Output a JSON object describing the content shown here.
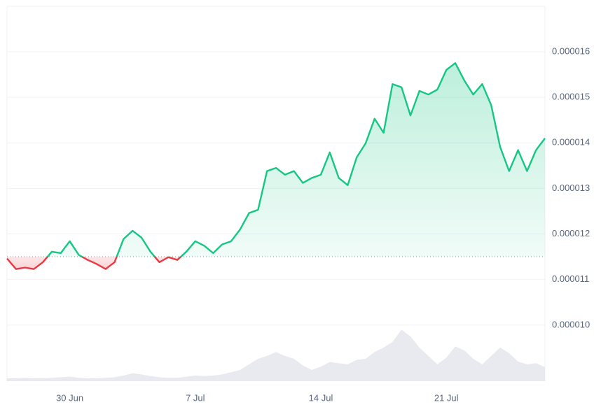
{
  "chart_data": {
    "type": "line",
    "categories": [
      null,
      null,
      null,
      null,
      null,
      null,
      null,
      "30 Jun",
      null,
      null,
      null,
      null,
      null,
      null,
      null,
      null,
      null,
      null,
      null,
      null,
      null,
      "7 Jul",
      null,
      null,
      null,
      null,
      null,
      null,
      null,
      null,
      null,
      null,
      null,
      null,
      null,
      "14 Jul",
      null,
      null,
      null,
      null,
      null,
      null,
      null,
      null,
      null,
      null,
      null,
      null,
      null,
      "21 Jul",
      null,
      null,
      null,
      null,
      null,
      null,
      null,
      null,
      null,
      null,
      null
    ],
    "series": [
      {
        "color": "#16c784",
        "values": [
          1.146e-05,
          1.123e-05,
          1.126e-05,
          1.123e-05,
          1.138e-05,
          1.161e-05,
          1.158e-05,
          1.184e-05,
          1.154e-05,
          1.143e-05,
          1.134e-05,
          1.123e-05,
          1.138e-05,
          1.189e-05,
          1.207e-05,
          1.192e-05,
          1.161e-05,
          1.138e-05,
          1.149e-05,
          1.143e-05,
          1.161e-05,
          1.184e-05,
          1.174e-05,
          1.158e-05,
          1.177e-05,
          1.184e-05,
          1.21e-05,
          1.246e-05,
          1.253e-05,
          1.338e-05,
          1.345e-05,
          1.33e-05,
          1.338e-05,
          1.312e-05,
          1.323e-05,
          1.33e-05,
          1.379e-05,
          1.323e-05,
          1.307e-05,
          1.368e-05,
          1.399e-05,
          1.453e-05,
          1.422e-05,
          1.529e-05,
          1.522e-05,
          1.46e-05,
          1.514e-05,
          1.506e-05,
          1.517e-05,
          1.56e-05,
          1.575e-05,
          1.537e-05,
          1.506e-05,
          1.529e-05,
          1.483e-05,
          1.391e-05,
          1.338e-05,
          1.384e-05,
          1.338e-05,
          1.384e-05,
          1.41e-05
        ]
      },
      {
        "color": "#e0e3eb",
        "axis": "y2",
        "values": [
          5,
          5,
          6,
          5,
          5,
          6,
          7,
          8,
          6,
          5,
          5,
          6,
          7,
          10,
          14,
          12,
          9,
          7,
          6,
          6,
          8,
          10,
          9,
          10,
          12,
          16,
          20,
          30,
          40,
          45,
          52,
          45,
          40,
          28,
          20,
          26,
          34,
          32,
          30,
          38,
          40,
          52,
          60,
          70,
          92,
          80,
          60,
          45,
          30,
          42,
          62,
          55,
          40,
          30,
          45,
          60,
          50,
          35,
          30,
          32,
          25
        ]
      }
    ],
    "baseline": 1.15e-05,
    "below_color": "#ea3943",
    "ylim": [
      8.8e-06,
      1.7e-05
    ],
    "yticks": [
      {
        "value": 1e-05,
        "label": "0.000010"
      },
      1.1e-05,
      1.2e-05,
      1.3e-05,
      1.4e-05,
      1.5e-05,
      1.6e-05
    ],
    "y2lim": [
      0,
      100
    ],
    "grid": true
  }
}
